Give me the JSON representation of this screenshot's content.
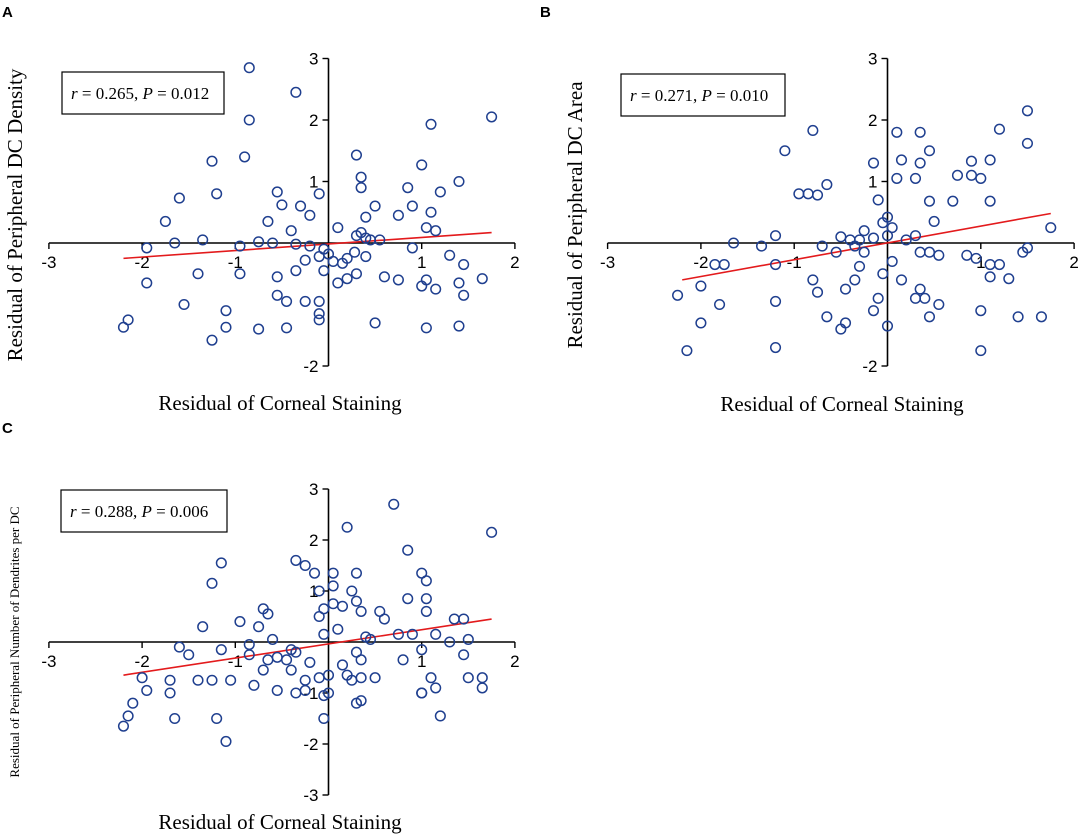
{
  "figure": {
    "colors": {
      "points": "#1f3f8f",
      "fit_line": "#e31a1c",
      "axes": "#000000"
    }
  },
  "chart_data": [
    {
      "panel": "A",
      "type": "scatter",
      "xlabel": "Residual of Corneal Staining",
      "ylabel": "Residual of Peripheral DC Density",
      "xlim": [
        -3,
        2
      ],
      "ylim": [
        -2,
        3
      ],
      "x_ticks": [
        -3,
        -2,
        -1,
        1,
        2
      ],
      "y_ticks": [
        -2,
        1,
        2,
        3
      ],
      "stat": {
        "r_symbol": "r",
        "r_value": " = 0.265, ",
        "p_symbol": "P",
        "p_value": " = 0.012"
      },
      "fit": {
        "x": [
          -2.2,
          1.75
        ],
        "y": [
          -0.25,
          0.17
        ]
      },
      "points": [
        [
          -0.85,
          2.85
        ],
        [
          -0.35,
          2.45
        ],
        [
          -0.85,
          2.0
        ],
        [
          1.1,
          1.93
        ],
        [
          1.75,
          2.05
        ],
        [
          -0.9,
          1.4
        ],
        [
          0.3,
          1.43
        ],
        [
          -1.25,
          1.33
        ],
        [
          1.0,
          1.27
        ],
        [
          0.35,
          1.07
        ],
        [
          1.4,
          1.0
        ],
        [
          -0.55,
          0.83
        ],
        [
          0.35,
          0.9
        ],
        [
          0.85,
          0.9
        ],
        [
          -1.2,
          0.8
        ],
        [
          -0.1,
          0.8
        ],
        [
          1.2,
          0.83
        ],
        [
          -1.6,
          0.73
        ],
        [
          -0.5,
          0.62
        ],
        [
          -0.3,
          0.6
        ],
        [
          0.5,
          0.6
        ],
        [
          0.9,
          0.6
        ],
        [
          -0.65,
          0.35
        ],
        [
          -0.2,
          0.45
        ],
        [
          0.75,
          0.45
        ],
        [
          1.1,
          0.5
        ],
        [
          -1.75,
          0.35
        ],
        [
          0.4,
          0.42
        ],
        [
          -0.4,
          0.2
        ],
        [
          0.1,
          0.25
        ],
        [
          1.05,
          0.25
        ],
        [
          1.15,
          0.2
        ],
        [
          -1.35,
          0.05
        ],
        [
          -0.75,
          0.02
        ],
        [
          0.3,
          0.12
        ],
        [
          0.35,
          0.17
        ],
        [
          0.4,
          0.08
        ],
        [
          0.45,
          0.05
        ],
        [
          0.55,
          0.05
        ],
        [
          -1.95,
          -0.08
        ],
        [
          -1.65,
          0.0
        ],
        [
          -0.95,
          -0.05
        ],
        [
          -0.6,
          0.0
        ],
        [
          -0.35,
          -0.02
        ],
        [
          -0.2,
          -0.05
        ],
        [
          -0.05,
          -0.1
        ],
        [
          0.0,
          -0.18
        ],
        [
          -0.1,
          -0.22
        ],
        [
          -0.25,
          -0.28
        ],
        [
          0.05,
          -0.3
        ],
        [
          0.15,
          -0.33
        ],
        [
          0.2,
          -0.25
        ],
        [
          0.4,
          -0.22
        ],
        [
          0.28,
          -0.15
        ],
        [
          0.9,
          -0.08
        ],
        [
          1.3,
          -0.2
        ],
        [
          1.45,
          -0.35
        ],
        [
          -1.95,
          -0.65
        ],
        [
          -1.4,
          -0.5
        ],
        [
          -0.95,
          -0.5
        ],
        [
          -0.35,
          -0.45
        ],
        [
          -0.55,
          -0.55
        ],
        [
          -0.05,
          -0.45
        ],
        [
          0.2,
          -0.58
        ],
        [
          0.1,
          -0.65
        ],
        [
          0.3,
          -0.5
        ],
        [
          0.6,
          -0.55
        ],
        [
          0.75,
          -0.6
        ],
        [
          1.05,
          -0.6
        ],
        [
          1.15,
          -0.75
        ],
        [
          -0.55,
          -0.85
        ],
        [
          -0.45,
          -0.95
        ],
        [
          -0.25,
          -0.95
        ],
        [
          -0.1,
          -0.95
        ],
        [
          1.45,
          -0.85
        ],
        [
          1.65,
          -0.58
        ],
        [
          -1.55,
          -1.0
        ],
        [
          -1.1,
          -1.1
        ],
        [
          -0.1,
          -1.15
        ],
        [
          -0.1,
          -1.25
        ],
        [
          -2.15,
          -1.25
        ],
        [
          -2.2,
          -1.37
        ],
        [
          -1.1,
          -1.37
        ],
        [
          -0.75,
          -1.4
        ],
        [
          -0.45,
          -1.38
        ],
        [
          0.5,
          -1.3
        ],
        [
          1.05,
          -1.38
        ],
        [
          1.4,
          -1.35
        ],
        [
          -1.25,
          -1.58
        ],
        [
          1.0,
          -0.7
        ],
        [
          1.4,
          -0.65
        ]
      ]
    },
    {
      "panel": "B",
      "type": "scatter",
      "xlabel": "Residual of Corneal Staining",
      "ylabel": "Residual of Peripheral DC Area",
      "xlim": [
        -3,
        2
      ],
      "ylim": [
        -2,
        3
      ],
      "x_ticks": [
        -3,
        -2,
        -1,
        1,
        2
      ],
      "y_ticks": [
        -2,
        1,
        2,
        3
      ],
      "stat": {
        "r_symbol": "r",
        "r_value": " = 0.271, ",
        "p_symbol": "P",
        "p_value": " = 0.010"
      },
      "fit": {
        "x": [
          -2.2,
          1.75
        ],
        "y": [
          -0.6,
          0.48
        ]
      },
      "points": [
        [
          1.5,
          2.15
        ],
        [
          1.2,
          1.85
        ],
        [
          -0.8,
          1.83
        ],
        [
          0.1,
          1.8
        ],
        [
          0.35,
          1.8
        ],
        [
          1.5,
          1.62
        ],
        [
          -1.1,
          1.5
        ],
        [
          0.45,
          1.5
        ],
        [
          -0.15,
          1.3
        ],
        [
          0.15,
          1.35
        ],
        [
          0.35,
          1.3
        ],
        [
          0.9,
          1.33
        ],
        [
          1.1,
          1.35
        ],
        [
          0.75,
          1.1
        ],
        [
          0.9,
          1.1
        ],
        [
          1.0,
          1.05
        ],
        [
          0.1,
          1.05
        ],
        [
          0.3,
          1.05
        ],
        [
          -0.65,
          0.95
        ],
        [
          -0.85,
          0.8
        ],
        [
          -0.75,
          0.78
        ],
        [
          -0.95,
          0.8
        ],
        [
          0.45,
          0.68
        ],
        [
          0.7,
          0.68
        ],
        [
          1.1,
          0.68
        ],
        [
          -0.1,
          0.7
        ],
        [
          0.0,
          0.42
        ],
        [
          0.5,
          0.35
        ],
        [
          -0.05,
          0.33
        ],
        [
          -0.25,
          0.2
        ],
        [
          0.05,
          0.25
        ],
        [
          0.0,
          0.12
        ],
        [
          0.3,
          0.12
        ],
        [
          -0.5,
          0.1
        ],
        [
          -0.4,
          0.05
        ],
        [
          -0.3,
          0.05
        ],
        [
          -0.35,
          -0.05
        ],
        [
          -0.15,
          0.08
        ],
        [
          0.2,
          0.05
        ],
        [
          -1.2,
          0.12
        ],
        [
          -1.65,
          0.0
        ],
        [
          -1.35,
          -0.05
        ],
        [
          -0.7,
          -0.05
        ],
        [
          -0.55,
          -0.15
        ],
        [
          -0.25,
          -0.15
        ],
        [
          0.35,
          -0.15
        ],
        [
          0.45,
          -0.15
        ],
        [
          0.55,
          -0.2
        ],
        [
          0.85,
          -0.2
        ],
        [
          1.5,
          -0.08
        ],
        [
          1.45,
          -0.15
        ],
        [
          0.95,
          -0.25
        ],
        [
          1.1,
          -0.35
        ],
        [
          1.2,
          -0.35
        ],
        [
          -1.85,
          -0.35
        ],
        [
          -1.75,
          -0.35
        ],
        [
          -1.2,
          -0.35
        ],
        [
          0.05,
          -0.3
        ],
        [
          -0.3,
          -0.38
        ],
        [
          0.15,
          -0.6
        ],
        [
          -0.8,
          -0.6
        ],
        [
          -0.75,
          -0.8
        ],
        [
          -0.35,
          -0.6
        ],
        [
          -0.45,
          -0.75
        ],
        [
          0.35,
          -0.75
        ],
        [
          0.3,
          -0.9
        ],
        [
          0.4,
          -0.9
        ],
        [
          -2.0,
          -0.7
        ],
        [
          -2.25,
          -0.85
        ],
        [
          -1.8,
          -1.0
        ],
        [
          -1.2,
          -0.95
        ],
        [
          -0.1,
          -0.9
        ],
        [
          -0.15,
          -1.1
        ],
        [
          -0.65,
          -1.2
        ],
        [
          0.45,
          -1.2
        ],
        [
          1.0,
          -1.1
        ],
        [
          1.4,
          -1.2
        ],
        [
          1.65,
          -1.2
        ],
        [
          -2.0,
          -1.3
        ],
        [
          -0.45,
          -1.3
        ],
        [
          0.0,
          -1.35
        ],
        [
          -0.5,
          -1.4
        ],
        [
          -2.15,
          -1.75
        ],
        [
          -1.2,
          -1.7
        ],
        [
          1.0,
          -1.75
        ],
        [
          1.1,
          -0.55
        ],
        [
          1.3,
          -0.58
        ],
        [
          1.75,
          0.25
        ],
        [
          -0.05,
          -0.5
        ],
        [
          0.55,
          -1.0
        ]
      ]
    },
    {
      "panel": "C",
      "type": "scatter",
      "xlabel": "Residual of Corneal Staining",
      "ylabel": "Residual of Peripheral Number of Dendrites per DC",
      "xlim": [
        -3,
        2
      ],
      "ylim": [
        -3,
        3
      ],
      "x_ticks": [
        -3,
        -2,
        -1,
        1,
        2
      ],
      "y_ticks": [
        -3,
        -2,
        -1,
        1,
        2,
        3
      ],
      "stat": {
        "r_symbol": "r",
        "r_value": " = 0.288, ",
        "p_symbol": "P",
        "p_value": " = 0.006"
      },
      "fit": {
        "x": [
          -2.2,
          1.75
        ],
        "y": [
          -0.65,
          0.45
        ]
      },
      "points": [
        [
          0.7,
          2.7
        ],
        [
          1.75,
          2.15
        ],
        [
          0.2,
          2.25
        ],
        [
          0.85,
          1.8
        ],
        [
          -0.35,
          1.6
        ],
        [
          -0.25,
          1.5
        ],
        [
          -1.15,
          1.55
        ],
        [
          0.05,
          1.35
        ],
        [
          0.3,
          1.35
        ],
        [
          1.0,
          1.35
        ],
        [
          -0.15,
          1.35
        ],
        [
          1.05,
          1.2
        ],
        [
          -1.25,
          1.15
        ],
        [
          0.05,
          1.1
        ],
        [
          0.25,
          1.0
        ],
        [
          -0.1,
          1.0
        ],
        [
          0.85,
          0.85
        ],
        [
          1.05,
          0.85
        ],
        [
          0.3,
          0.8
        ],
        [
          0.05,
          0.75
        ],
        [
          0.15,
          0.7
        ],
        [
          -0.7,
          0.65
        ],
        [
          -0.05,
          0.65
        ],
        [
          0.35,
          0.6
        ],
        [
          0.55,
          0.6
        ],
        [
          1.05,
          0.6
        ],
        [
          -0.65,
          0.55
        ],
        [
          -0.1,
          0.5
        ],
        [
          0.6,
          0.45
        ],
        [
          1.35,
          0.45
        ],
        [
          1.45,
          0.45
        ],
        [
          -0.95,
          0.4
        ],
        [
          -0.75,
          0.3
        ],
        [
          -1.35,
          0.3
        ],
        [
          0.1,
          0.25
        ],
        [
          0.4,
          0.1
        ],
        [
          -0.05,
          0.15
        ],
        [
          0.75,
          0.15
        ],
        [
          0.9,
          0.15
        ],
        [
          1.15,
          0.15
        ],
        [
          1.3,
          0.0
        ],
        [
          1.5,
          0.05
        ],
        [
          -0.6,
          0.05
        ],
        [
          -0.85,
          -0.05
        ],
        [
          -1.6,
          -0.1
        ],
        [
          -0.4,
          -0.15
        ],
        [
          0.45,
          0.05
        ],
        [
          0.3,
          -0.2
        ],
        [
          1.0,
          -0.15
        ],
        [
          -1.15,
          -0.15
        ],
        [
          -0.85,
          -0.25
        ],
        [
          -0.65,
          -0.35
        ],
        [
          -0.55,
          -0.3
        ],
        [
          -0.45,
          -0.35
        ],
        [
          -0.35,
          -0.2
        ],
        [
          -0.2,
          -0.4
        ],
        [
          0.15,
          -0.45
        ],
        [
          0.35,
          -0.35
        ],
        [
          0.8,
          -0.35
        ],
        [
          1.45,
          -0.25
        ],
        [
          -1.5,
          -0.25
        ],
        [
          -0.7,
          -0.55
        ],
        [
          -0.4,
          -0.55
        ],
        [
          -0.25,
          -0.75
        ],
        [
          -0.1,
          -0.7
        ],
        [
          0.0,
          -0.65
        ],
        [
          0.2,
          -0.65
        ],
        [
          0.25,
          -0.75
        ],
        [
          0.35,
          -0.7
        ],
        [
          0.5,
          -0.7
        ],
        [
          1.1,
          -0.7
        ],
        [
          1.5,
          -0.7
        ],
        [
          1.65,
          -0.7
        ],
        [
          -2.0,
          -0.7
        ],
        [
          -1.7,
          -0.75
        ],
        [
          -1.4,
          -0.75
        ],
        [
          -1.25,
          -0.75
        ],
        [
          -1.05,
          -0.75
        ],
        [
          -0.8,
          -0.85
        ],
        [
          -0.55,
          -0.95
        ],
        [
          -0.35,
          -1.0
        ],
        [
          -0.25,
          -0.95
        ],
        [
          -0.05,
          -1.05
        ],
        [
          0.3,
          -1.2
        ],
        [
          0.35,
          -1.15
        ],
        [
          1.0,
          -1.0
        ],
        [
          1.15,
          -0.9
        ],
        [
          1.65,
          -0.9
        ],
        [
          -2.1,
          -1.2
        ],
        [
          -1.95,
          -0.95
        ],
        [
          -1.7,
          -1.0
        ],
        [
          -1.2,
          -1.5
        ],
        [
          -2.15,
          -1.45
        ],
        [
          -2.2,
          -1.65
        ],
        [
          -1.65,
          -1.5
        ],
        [
          -0.05,
          -1.5
        ],
        [
          1.2,
          -1.45
        ],
        [
          -1.1,
          -1.95
        ],
        [
          0.0,
          -1.0
        ],
        [
          1.0,
          -1.0
        ]
      ]
    }
  ]
}
